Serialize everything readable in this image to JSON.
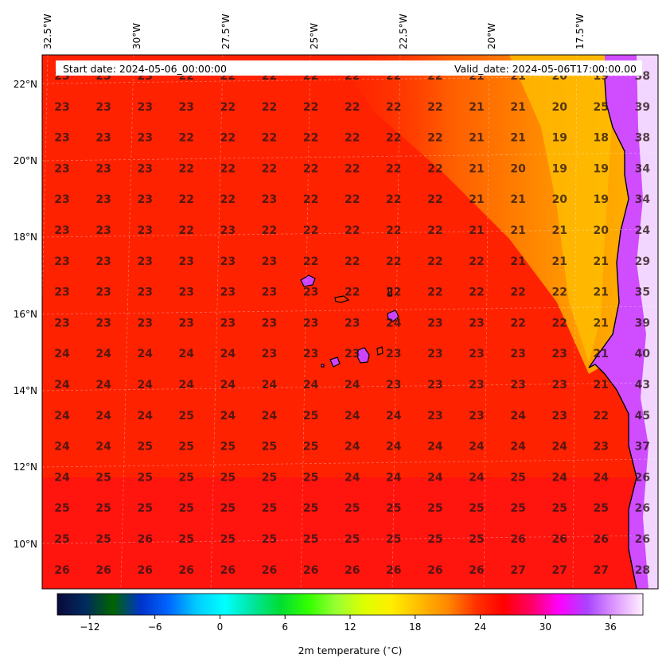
{
  "header": {
    "start_date": "Start date: 2024-05-06_00:00:00",
    "valid_date": "Valid_date: 2024-05-06T17:00:00.00"
  },
  "map": {
    "lon_labels": [
      "32.5°W",
      "30°W",
      "27.5°W",
      "25°W",
      "22.5°W",
      "20°W",
      "17.5°W"
    ],
    "lat_labels": [
      "22°N",
      "20°N",
      "18°N",
      "16°N",
      "14°N",
      "12°N",
      "10°N"
    ],
    "grid_values": [
      [
        23,
        23,
        23,
        22,
        22,
        22,
        22,
        22,
        22,
        22,
        21,
        21,
        20,
        19,
        38
      ],
      [
        23,
        23,
        23,
        23,
        22,
        22,
        22,
        22,
        22,
        22,
        21,
        21,
        20,
        25,
        39
      ],
      [
        23,
        23,
        23,
        22,
        22,
        22,
        22,
        22,
        22,
        22,
        21,
        21,
        19,
        18,
        38
      ],
      [
        23,
        23,
        23,
        22,
        22,
        22,
        22,
        22,
        22,
        22,
        21,
        20,
        19,
        19,
        34
      ],
      [
        23,
        23,
        23,
        22,
        22,
        23,
        22,
        22,
        22,
        22,
        21,
        21,
        20,
        19,
        34
      ],
      [
        23,
        23,
        23,
        22,
        23,
        22,
        22,
        22,
        22,
        22,
        21,
        21,
        21,
        20,
        24
      ],
      [
        23,
        23,
        23,
        23,
        23,
        23,
        22,
        22,
        22,
        22,
        22,
        21,
        21,
        21,
        29
      ],
      [
        23,
        23,
        23,
        23,
        23,
        23,
        23,
        22,
        22,
        22,
        22,
        22,
        22,
        21,
        35
      ],
      [
        23,
        23,
        23,
        23,
        23,
        23,
        23,
        23,
        24,
        23,
        23,
        22,
        22,
        21,
        39
      ],
      [
        24,
        24,
        24,
        24,
        24,
        23,
        23,
        23,
        23,
        23,
        23,
        23,
        23,
        21,
        40
      ],
      [
        24,
        24,
        24,
        24,
        24,
        24,
        24,
        24,
        23,
        23,
        23,
        23,
        23,
        21,
        43
      ],
      [
        24,
        24,
        24,
        25,
        24,
        24,
        25,
        24,
        24,
        23,
        23,
        24,
        23,
        22,
        45
      ],
      [
        24,
        24,
        25,
        25,
        25,
        25,
        25,
        24,
        24,
        24,
        24,
        24,
        24,
        23,
        37
      ],
      [
        24,
        25,
        25,
        25,
        25,
        25,
        25,
        24,
        24,
        24,
        24,
        25,
        24,
        24,
        26
      ],
      [
        25,
        25,
        25,
        25,
        25,
        25,
        25,
        25,
        25,
        25,
        25,
        25,
        25,
        25,
        26
      ],
      [
        25,
        25,
        26,
        25,
        25,
        25,
        25,
        25,
        25,
        25,
        25,
        26,
        26,
        26,
        26
      ],
      [
        26,
        26,
        26,
        26,
        26,
        26,
        26,
        26,
        26,
        26,
        26,
        27,
        27,
        27,
        28
      ]
    ]
  },
  "colorbar": {
    "label": "2m temperature ($^\\circ$C)",
    "ticks": [
      "−12",
      "−6",
      "0",
      "6",
      "12",
      "18",
      "24",
      "30",
      "36"
    ],
    "tick_values": [
      -12,
      -6,
      0,
      6,
      12,
      18,
      24,
      30,
      36
    ],
    "range": [
      -15,
      39
    ],
    "stops": [
      "#0a0a3a",
      "#002a60",
      "#006400",
      "#0033cc",
      "#0066ff",
      "#00ccff",
      "#00ffff",
      "#00e5a0",
      "#00dd33",
      "#33ff00",
      "#99ff33",
      "#ddff00",
      "#ffee00",
      "#ffbb00",
      "#ff8800",
      "#ff3300",
      "#ff0000",
      "#ff0066",
      "#ff00ff",
      "#aa44ff",
      "#dd99ff",
      "#fff0ff"
    ]
  },
  "colors": {
    "sea": "#ff1e00",
    "coast_warm": "#ffd000",
    "hot": "#c040ff"
  }
}
